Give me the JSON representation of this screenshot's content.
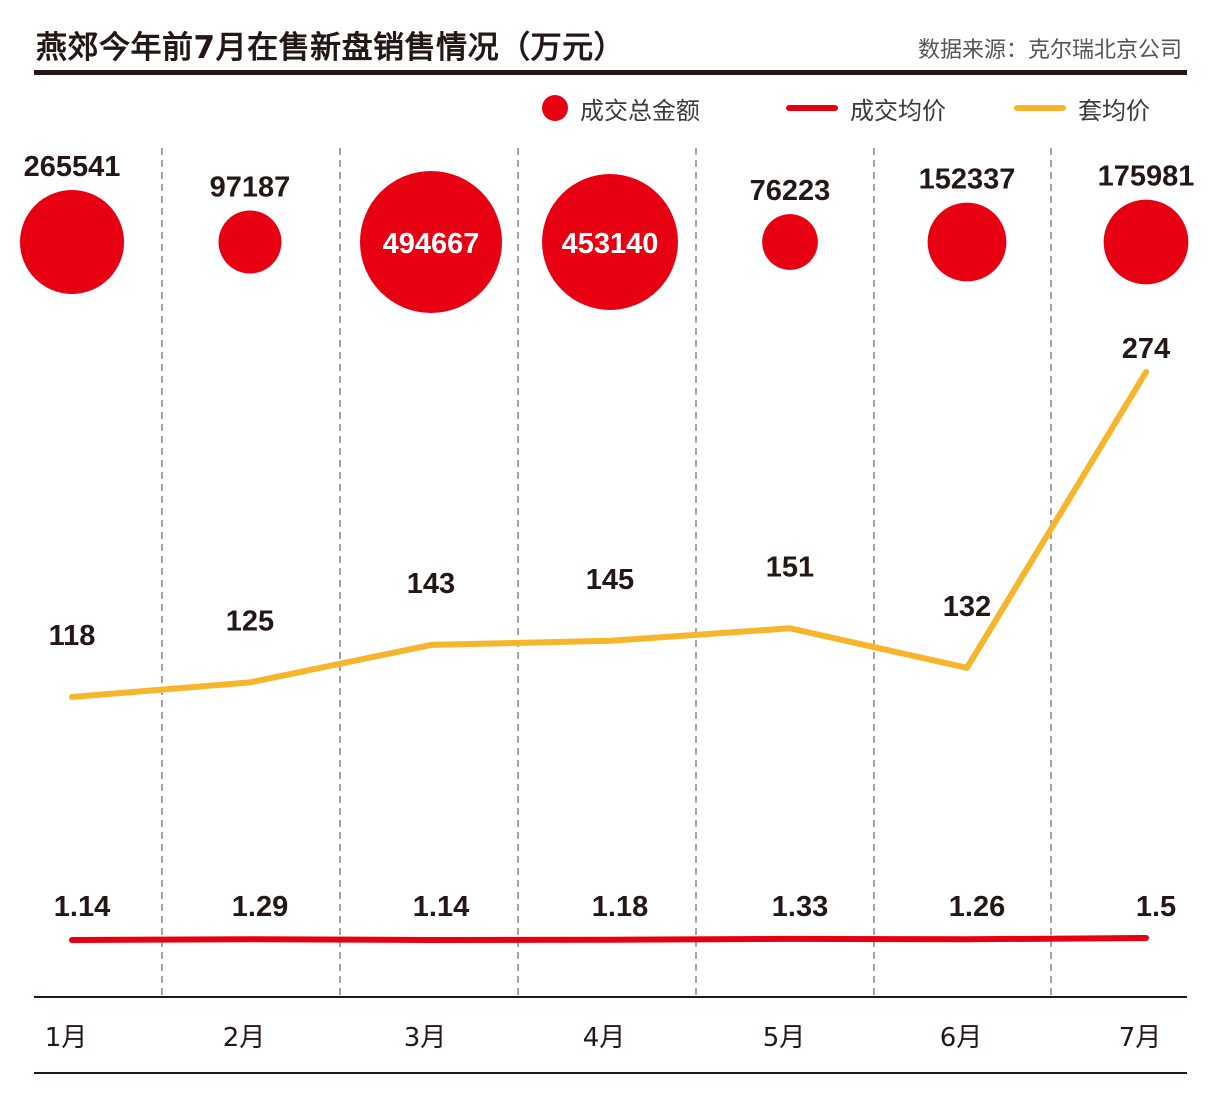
{
  "header": {
    "title": "燕郊今年前7月在售新盘销售情况（万元）",
    "source": "数据来源：克尔瑞北京公司"
  },
  "colors": {
    "bubble": "#e60012",
    "avg_price_line": "#e60012",
    "unit_price_line": "#f7b52c",
    "text": "#231815",
    "grid": "#7d7d7d"
  },
  "chart_data": {
    "type": "line",
    "title": "燕郊今年前7月在售新盘销售情况（万元）",
    "categories": [
      "1月",
      "2月",
      "3月",
      "4月",
      "5月",
      "6月",
      "7月"
    ],
    "series": [
      {
        "name": "成交总金额",
        "kind": "bubble",
        "values": [
          265541,
          97187,
          494667,
          453140,
          76223,
          152337,
          175981
        ]
      },
      {
        "name": "成交均价",
        "kind": "line",
        "values": [
          1.14,
          1.29,
          1.14,
          1.18,
          1.33,
          1.26,
          1.5
        ]
      },
      {
        "name": "套均价",
        "kind": "line",
        "values": [
          118,
          125,
          143,
          145,
          151,
          132,
          274
        ]
      }
    ],
    "value_labels": {
      "成交总金额": [
        "265541",
        "97187",
        "494667",
        "453140",
        "76223",
        "152337",
        "175981"
      ],
      "成交均价": [
        "1.14",
        "1.29",
        "1.14",
        "1.18",
        "1.33",
        "1.26",
        "1.5"
      ],
      "套均价": [
        "118",
        "125",
        "143",
        "145",
        "151",
        "132",
        "274"
      ]
    },
    "legend": [
      "成交总金额",
      "成交均价",
      "套均价"
    ],
    "legend_position": "top-right",
    "grid": "vertical dashed"
  }
}
